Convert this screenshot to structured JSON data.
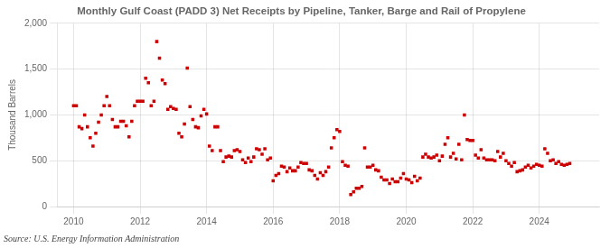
{
  "chart_data": {
    "type": "scatter",
    "title": "Monthly Gulf Coast (PADD 3) Net Receipts by Pipeline, Tanker, Barge and Rail of Propylene",
    "y_label": "Thousand Barrels",
    "annotation": "Source: U.S. Energy Information Administration",
    "color": "#cc0000",
    "marker": "square",
    "grid": true,
    "xlim": [
      2009.5,
      2025.8
    ],
    "xticks": [
      2010,
      2012,
      2014,
      2016,
      2018,
      2020,
      2022,
      2024
    ],
    "ylim": [
      0,
      2000
    ],
    "yticks": [
      0,
      500,
      {
        "value": 1000,
        "label": "1,000"
      },
      {
        "value": 1500,
        "label": "1,500"
      },
      {
        "value": 2000,
        "label": "2,000"
      }
    ],
    "x": [
      2010.0,
      2010.083,
      2010.167,
      2010.25,
      2010.333,
      2010.417,
      2010.5,
      2010.583,
      2010.667,
      2010.75,
      2010.833,
      2010.917,
      2011.0,
      2011.083,
      2011.167,
      2011.25,
      2011.333,
      2011.417,
      2011.5,
      2011.583,
      2011.667,
      2011.75,
      2011.833,
      2011.917,
      2012.0,
      2012.083,
      2012.167,
      2012.25,
      2012.333,
      2012.417,
      2012.5,
      2012.583,
      2012.667,
      2012.75,
      2012.833,
      2012.917,
      2013.0,
      2013.083,
      2013.167,
      2013.25,
      2013.333,
      2013.417,
      2013.5,
      2013.583,
      2013.667,
      2013.75,
      2013.833,
      2013.917,
      2014.0,
      2014.083,
      2014.167,
      2014.25,
      2014.333,
      2014.417,
      2014.5,
      2014.583,
      2014.667,
      2014.75,
      2014.833,
      2014.917,
      2015.0,
      2015.083,
      2015.167,
      2015.25,
      2015.333,
      2015.417,
      2015.5,
      2015.583,
      2015.667,
      2015.75,
      2015.833,
      2015.917,
      2016.0,
      2016.083,
      2016.167,
      2016.25,
      2016.333,
      2016.417,
      2016.5,
      2016.583,
      2016.667,
      2016.75,
      2016.833,
      2016.917,
      2017.0,
      2017.083,
      2017.167,
      2017.25,
      2017.333,
      2017.417,
      2017.5,
      2017.583,
      2017.667,
      2017.75,
      2017.833,
      2017.917,
      2018.0,
      2018.083,
      2018.167,
      2018.25,
      2018.333,
      2018.417,
      2018.5,
      2018.583,
      2018.667,
      2018.75,
      2018.833,
      2018.917,
      2019.0,
      2019.083,
      2019.167,
      2019.25,
      2019.333,
      2019.417,
      2019.5,
      2019.583,
      2019.667,
      2019.75,
      2019.833,
      2019.917,
      2020.0,
      2020.083,
      2020.167,
      2020.25,
      2020.333,
      2020.417,
      2020.5,
      2020.583,
      2020.667,
      2020.75,
      2020.833,
      2020.917,
      2021.0,
      2021.083,
      2021.167,
      2021.25,
      2021.333,
      2021.417,
      2021.5,
      2021.583,
      2021.667,
      2021.75,
      2021.833,
      2021.917,
      2022.0,
      2022.083,
      2022.167,
      2022.25,
      2022.333,
      2022.417,
      2022.5,
      2022.583,
      2022.667,
      2022.75,
      2022.833,
      2022.917,
      2023.0,
      2023.083,
      2023.167,
      2023.25,
      2023.333,
      2023.417,
      2023.5,
      2023.583,
      2023.667,
      2023.75,
      2023.833,
      2023.917,
      2024.0,
      2024.083,
      2024.167,
      2024.25,
      2024.333,
      2024.417,
      2024.5,
      2024.583,
      2024.667,
      2024.75,
      2024.833,
      2024.917
    ],
    "values": [
      1100,
      1100,
      870,
      850,
      1000,
      870,
      750,
      660,
      800,
      920,
      1000,
      1100,
      1200,
      1100,
      950,
      870,
      870,
      930,
      930,
      880,
      760,
      930,
      1100,
      1150,
      1150,
      1150,
      1400,
      1350,
      1100,
      1150,
      1800,
      1620,
      1380,
      1340,
      1060,
      1090,
      1070,
      1060,
      800,
      760,
      900,
      1510,
      1090,
      950,
      870,
      860,
      990,
      1060,
      1010,
      660,
      610,
      870,
      870,
      610,
      490,
      540,
      550,
      540,
      610,
      620,
      600,
      510,
      480,
      530,
      490,
      540,
      630,
      620,
      570,
      630,
      510,
      530,
      280,
      340,
      360,
      440,
      430,
      380,
      420,
      390,
      390,
      430,
      480,
      470,
      470,
      400,
      390,
      340,
      300,
      370,
      340,
      380,
      430,
      640,
      750,
      840,
      820,
      490,
      450,
      440,
      130,
      160,
      200,
      200,
      220,
      640,
      430,
      430,
      450,
      400,
      390,
      320,
      290,
      290,
      250,
      300,
      270,
      270,
      310,
      360,
      300,
      290,
      260,
      330,
      280,
      310,
      540,
      570,
      540,
      530,
      540,
      560,
      500,
      550,
      680,
      750,
      540,
      580,
      520,
      680,
      510,
      1000,
      730,
      720,
      720,
      560,
      530,
      620,
      530,
      510,
      510,
      510,
      500,
      600,
      540,
      580,
      500,
      470,
      440,
      480,
      380,
      390,
      400,
      430,
      450,
      420,
      440,
      460,
      450,
      440,
      630,
      580,
      500,
      510,
      470,
      490,
      460,
      450,
      460,
      470
    ]
  }
}
